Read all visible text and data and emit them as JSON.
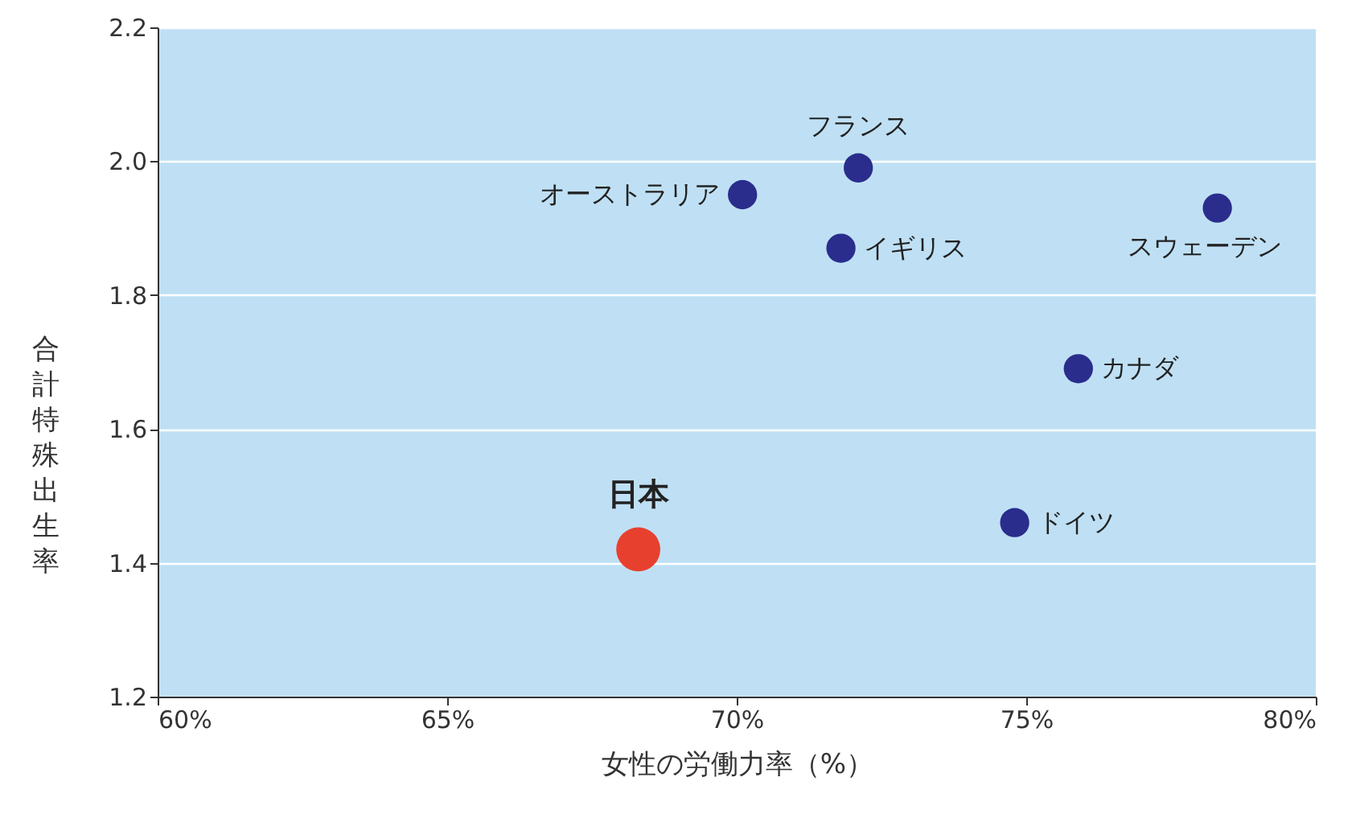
{
  "chart_data": {
    "type": "scatter",
    "xlabel": "女性の労働力率（%）",
    "ylabel": "合計特殊出生率",
    "xlim": [
      60,
      80
    ],
    "xticks": [
      {
        "value": 60,
        "label": "60%"
      },
      {
        "value": 65,
        "label": "65%"
      },
      {
        "value": 70,
        "label": "70%"
      },
      {
        "value": 75,
        "label": "75%"
      },
      {
        "value": 80,
        "label": "80%"
      }
    ],
    "ylim": [
      1.2,
      2.2
    ],
    "yticks": [
      1.2,
      1.4,
      1.6,
      1.8,
      {
        "value": 2,
        "label": "2.0"
      },
      2.2
    ],
    "grid": "y",
    "marker": "circle",
    "series": [
      {
        "name": "日本",
        "color": "#e8402f",
        "x": [
          68.3
        ],
        "values": [
          1.42
        ]
      },
      {
        "name": "オーストラリア",
        "color": "#2a2d8c",
        "x": [
          70.1
        ],
        "values": [
          1.95
        ]
      },
      {
        "name": "フランス",
        "color": "#2a2d8c",
        "x": [
          72.1
        ],
        "values": [
          1.99
        ]
      },
      {
        "name": "イギリス",
        "color": "#2a2d8c",
        "x": [
          71.8
        ],
        "values": [
          1.87
        ]
      },
      {
        "name": "スウェーデン",
        "color": "#2a2d8c",
        "x": [
          78.3
        ],
        "values": [
          1.93
        ]
      },
      {
        "name": "カナダ",
        "color": "#2a2d8c",
        "x": [
          75.9
        ],
        "values": [
          1.69
        ]
      },
      {
        "name": "ドイツ",
        "color": "#2a2d8c",
        "x": [
          74.8
        ],
        "values": [
          1.46
        ]
      }
    ]
  }
}
